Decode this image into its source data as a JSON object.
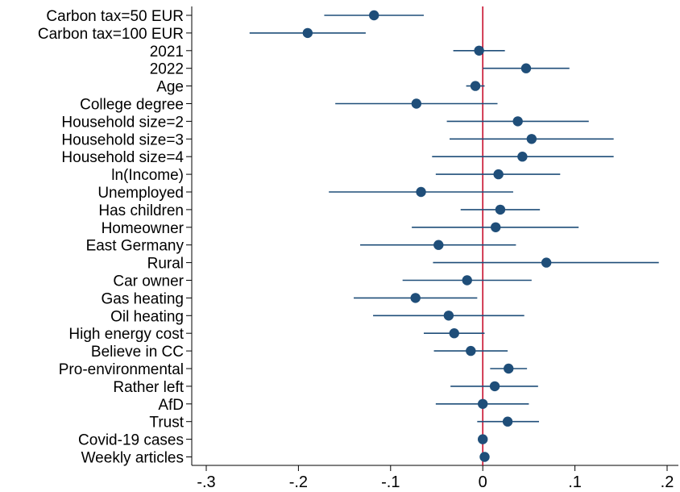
{
  "chart_data": {
    "type": "scatter",
    "orientation": "horizontal",
    "title": "",
    "xlabel": "",
    "ylabel": "",
    "xlim": [
      -0.3,
      0.2
    ],
    "xticks": [
      -0.3,
      -0.2,
      -0.1,
      0,
      0.1,
      0.2
    ],
    "xtick_labels": [
      "-.3",
      "-.2",
      "-.1",
      "0",
      ".1",
      ".2"
    ],
    "reference_line": {
      "x": 0,
      "color": "#c8102e"
    },
    "marker_color": "#1f4e79",
    "ci_color": "#1f4e79",
    "grid": false,
    "categories": [
      "Carbon tax=50 EUR",
      "Carbon tax=100 EUR",
      "2021",
      "2022",
      "Age",
      "College degree",
      "Household size=2",
      "Household size=3",
      "Household size=4",
      "ln(Income)",
      "Unemployed",
      "Has children",
      "Homeowner",
      "East Germany",
      "Rural",
      "Car owner",
      "Gas heating",
      "Oil heating",
      "High energy cost",
      "Believe in CC",
      "Pro-environmental",
      "Rather left",
      "AfD",
      "Trust",
      "Covid-19 cases",
      "Weekly articles"
    ],
    "estimates": [
      -0.118,
      -0.19,
      -0.004,
      0.047,
      -0.008,
      -0.072,
      0.038,
      0.053,
      0.043,
      0.017,
      -0.067,
      0.019,
      0.014,
      -0.048,
      0.069,
      -0.017,
      -0.073,
      -0.037,
      -0.031,
      -0.013,
      0.028,
      0.013,
      0.0,
      0.027,
      0.0,
      0.002
    ],
    "ci_low": [
      -0.172,
      -0.253,
      -0.032,
      0.0,
      -0.018,
      -0.16,
      -0.039,
      -0.036,
      -0.055,
      -0.051,
      -0.167,
      -0.024,
      -0.077,
      -0.133,
      -0.054,
      -0.087,
      -0.14,
      -0.119,
      -0.064,
      -0.053,
      0.008,
      -0.035,
      -0.051,
      -0.006,
      -0.004,
      -0.001
    ],
    "ci_high": [
      -0.064,
      -0.127,
      0.024,
      0.094,
      0.002,
      0.016,
      0.115,
      0.142,
      0.142,
      0.084,
      0.033,
      0.062,
      0.104,
      0.036,
      0.191,
      0.053,
      -0.006,
      0.045,
      0.002,
      0.027,
      0.048,
      0.06,
      0.05,
      0.061,
      0.004,
      0.005
    ]
  }
}
